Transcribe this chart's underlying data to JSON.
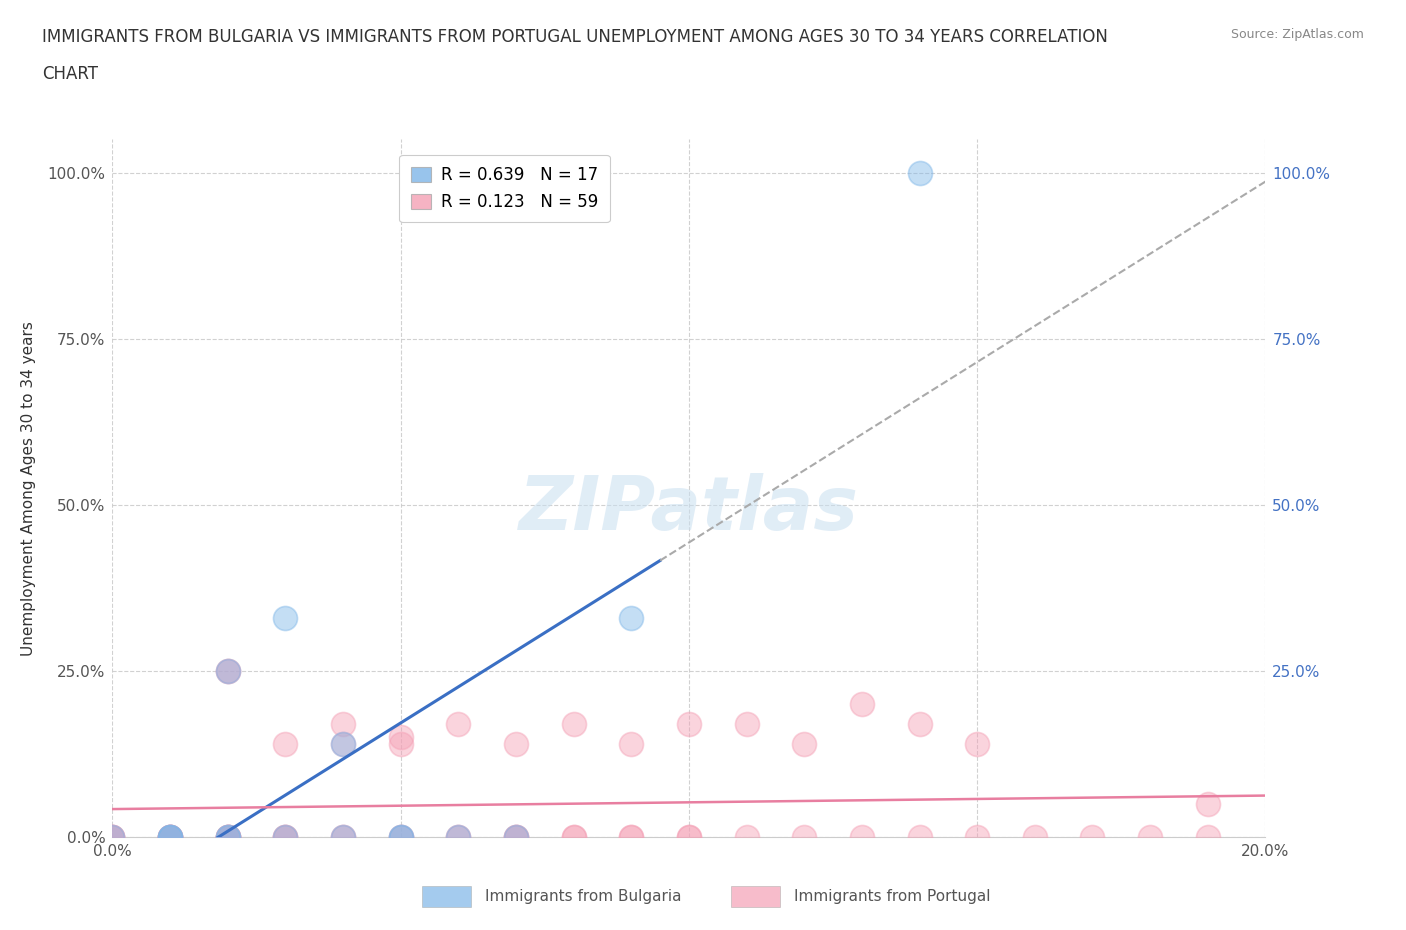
{
  "title_line1": "IMMIGRANTS FROM BULGARIA VS IMMIGRANTS FROM PORTUGAL UNEMPLOYMENT AMONG AGES 30 TO 34 YEARS CORRELATION",
  "title_line2": "CHART",
  "source": "Source: ZipAtlas.com",
  "ylabel": "Unemployment Among Ages 30 to 34 years",
  "xlim": [
    0.0,
    0.2
  ],
  "ylim": [
    0.0,
    1.05
  ],
  "x_ticks": [
    0.0,
    0.05,
    0.1,
    0.15,
    0.2
  ],
  "y_ticks": [
    0.0,
    0.25,
    0.5,
    0.75,
    1.0
  ],
  "y_tick_labels_left": [
    "0.0%",
    "25.0%",
    "50.0%",
    "75.0%",
    "100.0%"
  ],
  "y_tick_labels_right": [
    "",
    "25.0%",
    "50.0%",
    "75.0%",
    "100.0%"
  ],
  "x_tick_labels_bottom": [
    "0.0%",
    "",
    "",
    "",
    "20.0%"
  ],
  "bulgaria_color": "#7EB6E8",
  "portugal_color": "#F4A0B5",
  "bulgaria_line_color": "#3A6FC4",
  "portugal_line_color": "#E87EA0",
  "right_axis_color": "#4472C4",
  "bulgaria_R": 0.639,
  "bulgaria_N": 17,
  "portugal_R": 0.123,
  "portugal_N": 59,
  "legend1_label": "Immigrants from Bulgaria",
  "legend2_label": "Immigrants from Portugal",
  "watermark": "ZIPatlas",
  "background_color": "#ffffff",
  "grid_color": "#cccccc",
  "bulgaria_x": [
    0.0,
    0.01,
    0.01,
    0.01,
    0.02,
    0.02,
    0.02,
    0.03,
    0.03,
    0.04,
    0.04,
    0.05,
    0.05,
    0.06,
    0.07,
    0.09,
    0.14
  ],
  "bulgaria_y": [
    0.0,
    0.0,
    0.0,
    0.0,
    0.0,
    0.0,
    0.25,
    0.0,
    0.33,
    0.0,
    0.14,
    0.0,
    0.0,
    0.0,
    0.0,
    0.33,
    1.0
  ],
  "portugal_x": [
    0.0,
    0.0,
    0.0,
    0.0,
    0.01,
    0.01,
    0.01,
    0.01,
    0.01,
    0.02,
    0.02,
    0.02,
    0.02,
    0.02,
    0.02,
    0.02,
    0.03,
    0.03,
    0.03,
    0.03,
    0.04,
    0.04,
    0.04,
    0.04,
    0.05,
    0.05,
    0.05,
    0.05,
    0.06,
    0.06,
    0.06,
    0.07,
    0.07,
    0.07,
    0.07,
    0.08,
    0.08,
    0.08,
    0.09,
    0.09,
    0.09,
    0.1,
    0.1,
    0.1,
    0.11,
    0.11,
    0.12,
    0.12,
    0.13,
    0.13,
    0.14,
    0.14,
    0.15,
    0.15,
    0.16,
    0.17,
    0.18,
    0.19,
    0.19
  ],
  "portugal_y": [
    0.0,
    0.0,
    0.0,
    0.0,
    0.0,
    0.0,
    0.0,
    0.0,
    0.0,
    0.0,
    0.0,
    0.0,
    0.0,
    0.0,
    0.25,
    0.25,
    0.0,
    0.0,
    0.0,
    0.14,
    0.0,
    0.0,
    0.14,
    0.17,
    0.0,
    0.0,
    0.14,
    0.15,
    0.0,
    0.0,
    0.17,
    0.0,
    0.0,
    0.0,
    0.14,
    0.0,
    0.0,
    0.17,
    0.0,
    0.0,
    0.14,
    0.0,
    0.0,
    0.17,
    0.0,
    0.17,
    0.0,
    0.14,
    0.0,
    0.2,
    0.0,
    0.17,
    0.0,
    0.14,
    0.0,
    0.0,
    0.0,
    0.0,
    0.05
  ],
  "scatter_size": 300,
  "scatter_alpha": 0.45,
  "scatter_linewidth": 1.2
}
